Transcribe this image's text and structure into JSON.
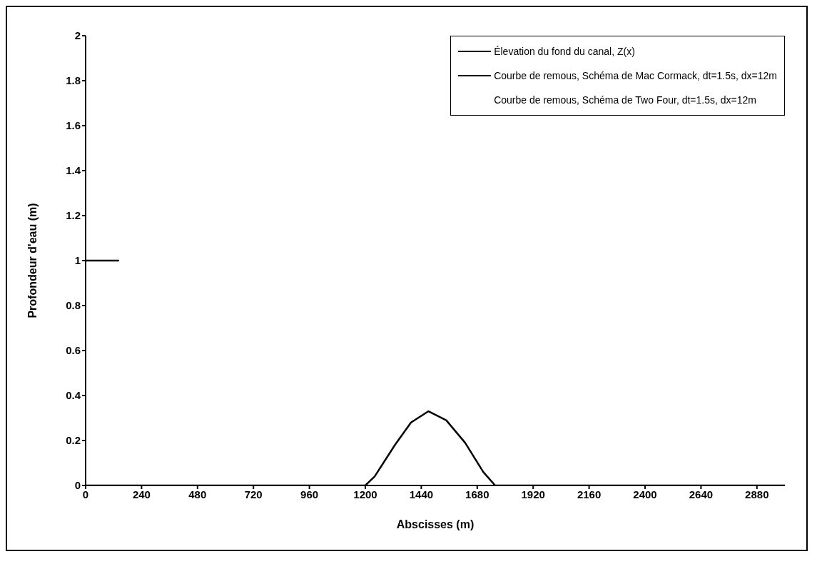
{
  "chart_data": {
    "type": "line",
    "xlabel": "Abscisses (m)",
    "ylabel": "Profondeur d'eau (m)",
    "xlim": [
      0,
      3000
    ],
    "xticks": [
      0,
      240,
      480,
      720,
      960,
      1200,
      1440,
      1680,
      1920,
      2160,
      2400,
      2640,
      2880
    ],
    "ylim": [
      0,
      2
    ],
    "yticks": [
      0,
      0.2,
      0.4,
      0.6,
      0.8,
      1,
      1.2,
      1.4,
      1.6,
      1.8,
      2
    ],
    "grid": false,
    "legend": "top right",
    "marker": "none",
    "line_style": "solid",
    "series": [
      {
        "name": "Élevation du fond du canal, Z(x)",
        "color": "#000000",
        "x": [
          0,
          1200,
          1240,
          1327,
          1396,
          1471,
          1547,
          1628,
          1706,
          1757,
          3000
        ],
        "values": [
          0,
          0,
          0.04,
          0.18,
          0.28,
          0.33,
          0.29,
          0.19,
          0.06,
          0,
          0
        ]
      },
      {
        "name": "Courbe de remous, Schéma de Mac Cormack, dt=1.5s, dx=12m",
        "color": "#000000",
        "x": [
          0,
          140
        ],
        "values": [
          1,
          1
        ]
      },
      {
        "name": "Courbe de remous, Schéma de Two Four, dt=1.5s, dx=12m"
      }
    ]
  }
}
